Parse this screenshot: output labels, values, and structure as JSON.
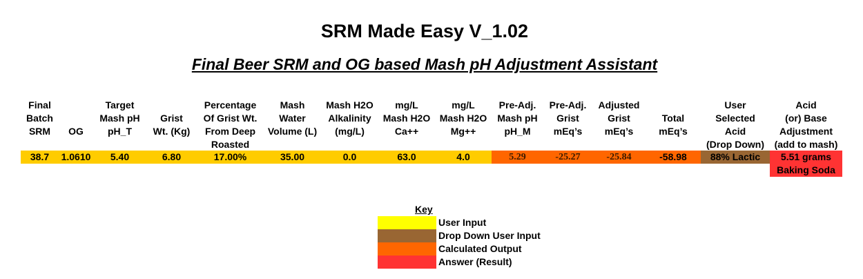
{
  "title": "SRM Made Easy  V_1.02",
  "subtitle": "Final Beer SRM and OG based Mash pH Adjustment Assistant",
  "table": {
    "headers": [
      [
        "Final",
        "Batch",
        "SRM"
      ],
      [
        "OG"
      ],
      [
        "Target",
        "Mash pH",
        "pH_T"
      ],
      [
        "Grist",
        "Wt. (Kg)"
      ],
      [
        "Percentage",
        "Of Grist Wt.",
        "From Deep",
        "Roasted"
      ],
      [
        "Mash",
        "Water",
        "Volume (L)"
      ],
      [
        "Mash H2O",
        "Alkalinity",
        "(mg/L)"
      ],
      [
        "mg/L",
        "Mash H2O",
        "Ca++"
      ],
      [
        "mg/L",
        "Mash H2O",
        "Mg++"
      ],
      [
        "Pre-Adj.",
        "Mash pH",
        "pH_M"
      ],
      [
        "Pre-Adj.",
        "Grist",
        "mEq’s"
      ],
      [
        "Adjusted",
        "Grist",
        "mEq’s"
      ],
      [
        "Total",
        "mEq’s"
      ],
      [
        "User",
        "Selected",
        "Acid",
        "(Drop Down)"
      ],
      [
        "Acid",
        "(or) Base",
        "Adjustment",
        "(add to mash)"
      ]
    ],
    "row": [
      [
        "38.7"
      ],
      [
        "1.0610"
      ],
      [
        "5.40"
      ],
      [
        "6.80"
      ],
      [
        "17.00%"
      ],
      [
        "35.00"
      ],
      [
        "0.0"
      ],
      [
        "63.0"
      ],
      [
        "4.0"
      ],
      [
        "5.29"
      ],
      [
        "-25.27"
      ],
      [
        "-25.84"
      ],
      [
        "-58.98"
      ],
      [
        "88% Lactic"
      ],
      [
        "5.51 grams",
        "Baking Soda"
      ]
    ]
  },
  "key": {
    "title": "Key",
    "items": [
      "User Input",
      "Drop Down User Input",
      "Calculated Output",
      "Answer (Result)"
    ]
  }
}
